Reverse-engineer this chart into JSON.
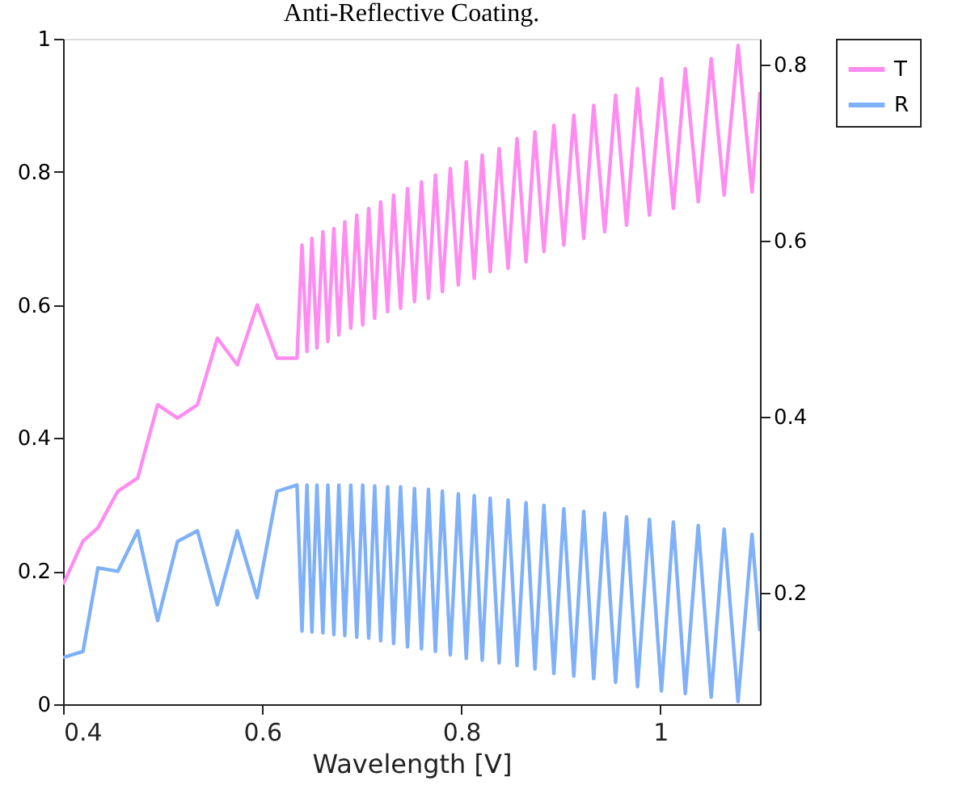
{
  "chart_data": {
    "type": "line",
    "title": "Anti-Reflective Coating.",
    "xlabel": "Wavelength [V]",
    "x": [
      0.4,
      0.42,
      0.435,
      0.455,
      0.475,
      0.495,
      0.515,
      0.535,
      0.555,
      0.575,
      0.595,
      0.615,
      0.635,
      0.64,
      0.645,
      0.65,
      0.655,
      0.661,
      0.666,
      0.672,
      0.677,
      0.683,
      0.689,
      0.695,
      0.701,
      0.707,
      0.713,
      0.719,
      0.726,
      0.732,
      0.739,
      0.746,
      0.753,
      0.76,
      0.767,
      0.774,
      0.781,
      0.789,
      0.797,
      0.805,
      0.813,
      0.821,
      0.829,
      0.838,
      0.847,
      0.856,
      0.865,
      0.874,
      0.883,
      0.893,
      0.903,
      0.913,
      0.923,
      0.933,
      0.944,
      0.955,
      0.966,
      0.977,
      0.989,
      1.001,
      1.013,
      1.025,
      1.038,
      1.051,
      1.064,
      1.078,
      1.092,
      1.1
    ],
    "series": [
      {
        "name": "T",
        "color": "#ff8cf0",
        "values": [
          0.18,
          0.245,
          0.265,
          0.32,
          0.34,
          0.45,
          0.43,
          0.45,
          0.55,
          0.51,
          0.6,
          0.52,
          0.52,
          0.69,
          0.53,
          0.7,
          0.535,
          0.71,
          0.545,
          0.715,
          0.555,
          0.725,
          0.565,
          0.735,
          0.57,
          0.745,
          0.58,
          0.755,
          0.59,
          0.765,
          0.595,
          0.775,
          0.605,
          0.785,
          0.61,
          0.795,
          0.62,
          0.805,
          0.63,
          0.815,
          0.64,
          0.825,
          0.65,
          0.835,
          0.655,
          0.85,
          0.665,
          0.86,
          0.68,
          0.87,
          0.69,
          0.885,
          0.7,
          0.9,
          0.71,
          0.915,
          0.72,
          0.925,
          0.735,
          0.94,
          0.745,
          0.955,
          0.755,
          0.97,
          0.765,
          0.99,
          0.77,
          0.92
        ]
      },
      {
        "name": "R",
        "color": "#7fb0f8",
        "axis": "y2",
        "values": [
          0.126,
          0.133,
          0.228,
          0.224,
          0.27,
          0.168,
          0.258,
          0.27,
          0.186,
          0.27,
          0.194,
          0.315,
          0.322,
          0.156,
          0.322,
          0.155,
          0.322,
          0.154,
          0.322,
          0.152,
          0.322,
          0.151,
          0.322,
          0.149,
          0.322,
          0.148,
          0.321,
          0.145,
          0.32,
          0.142,
          0.32,
          0.138,
          0.318,
          0.136,
          0.317,
          0.133,
          0.315,
          0.129,
          0.312,
          0.125,
          0.31,
          0.123,
          0.307,
          0.12,
          0.305,
          0.117,
          0.302,
          0.113,
          0.299,
          0.108,
          0.295,
          0.105,
          0.292,
          0.102,
          0.29,
          0.098,
          0.286,
          0.093,
          0.283,
          0.088,
          0.28,
          0.085,
          0.276,
          0.081,
          0.272,
          0.076,
          0.266,
          0.156
        ]
      }
    ],
    "xlim": [
      0.4,
      1.1
    ],
    "xticks": [
      0.4,
      0.6,
      0.8,
      1
    ],
    "ylim": [
      0,
      1
    ],
    "yticks": [
      0,
      0.2,
      0.4,
      0.6,
      0.8,
      1
    ],
    "y2lim": [
      0.073,
      0.829
    ],
    "y2ticks": [
      0.2,
      0.4,
      0.6,
      0.8
    ],
    "legend": "top right",
    "grid": false
  }
}
